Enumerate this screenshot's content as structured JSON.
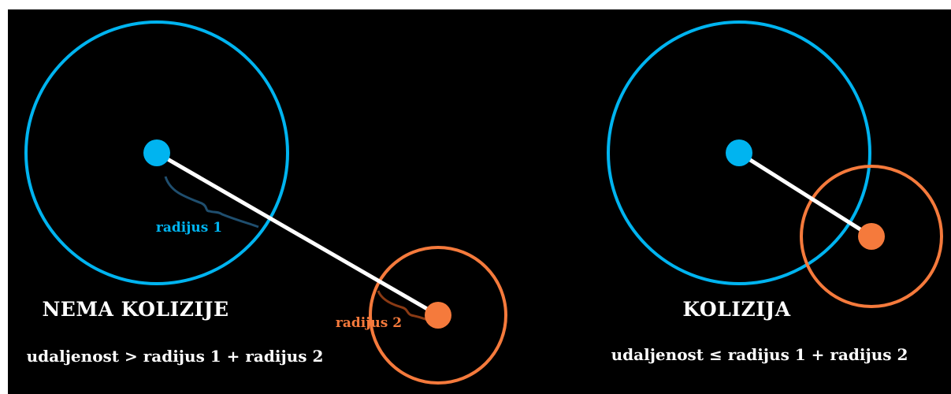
{
  "left_scene": {
    "title": "NEMA KOLIZIJE",
    "formula": "udaljenost > radijus 1 + radijus 2",
    "radius1_label": "radijus 1",
    "radius2_label": "radijus 2"
  },
  "right_scene": {
    "title": "KOLIZIJA",
    "formula": "udaljenost ≤ radijus 1 + radijus 2"
  },
  "colors": {
    "background": "#000000",
    "circle1": "#00b4f0",
    "circle2": "#f57a3c",
    "distance_line": "#ffffff",
    "text": "#ffffff",
    "radius1_brace": "#1f4e6e",
    "radius2_brace": "#8a3a14"
  }
}
